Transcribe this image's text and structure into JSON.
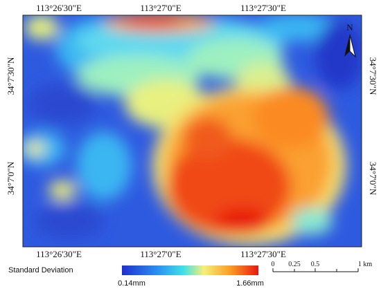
{
  "graticule": {
    "longitude_labels": [
      "113°26'30\"E",
      "113°27'0\"E",
      "113°27'30\"E"
    ],
    "latitude_labels": [
      "34°7'30\"N",
      "34°7'0\"N"
    ]
  },
  "north_arrow": "N",
  "legend": {
    "title": "Standard Deviation",
    "min_label": "0.14mm",
    "max_label": "1.66mm"
  },
  "scale_bar": {
    "labels": [
      "0",
      "0.25",
      "0.5",
      "1 km"
    ]
  }
}
